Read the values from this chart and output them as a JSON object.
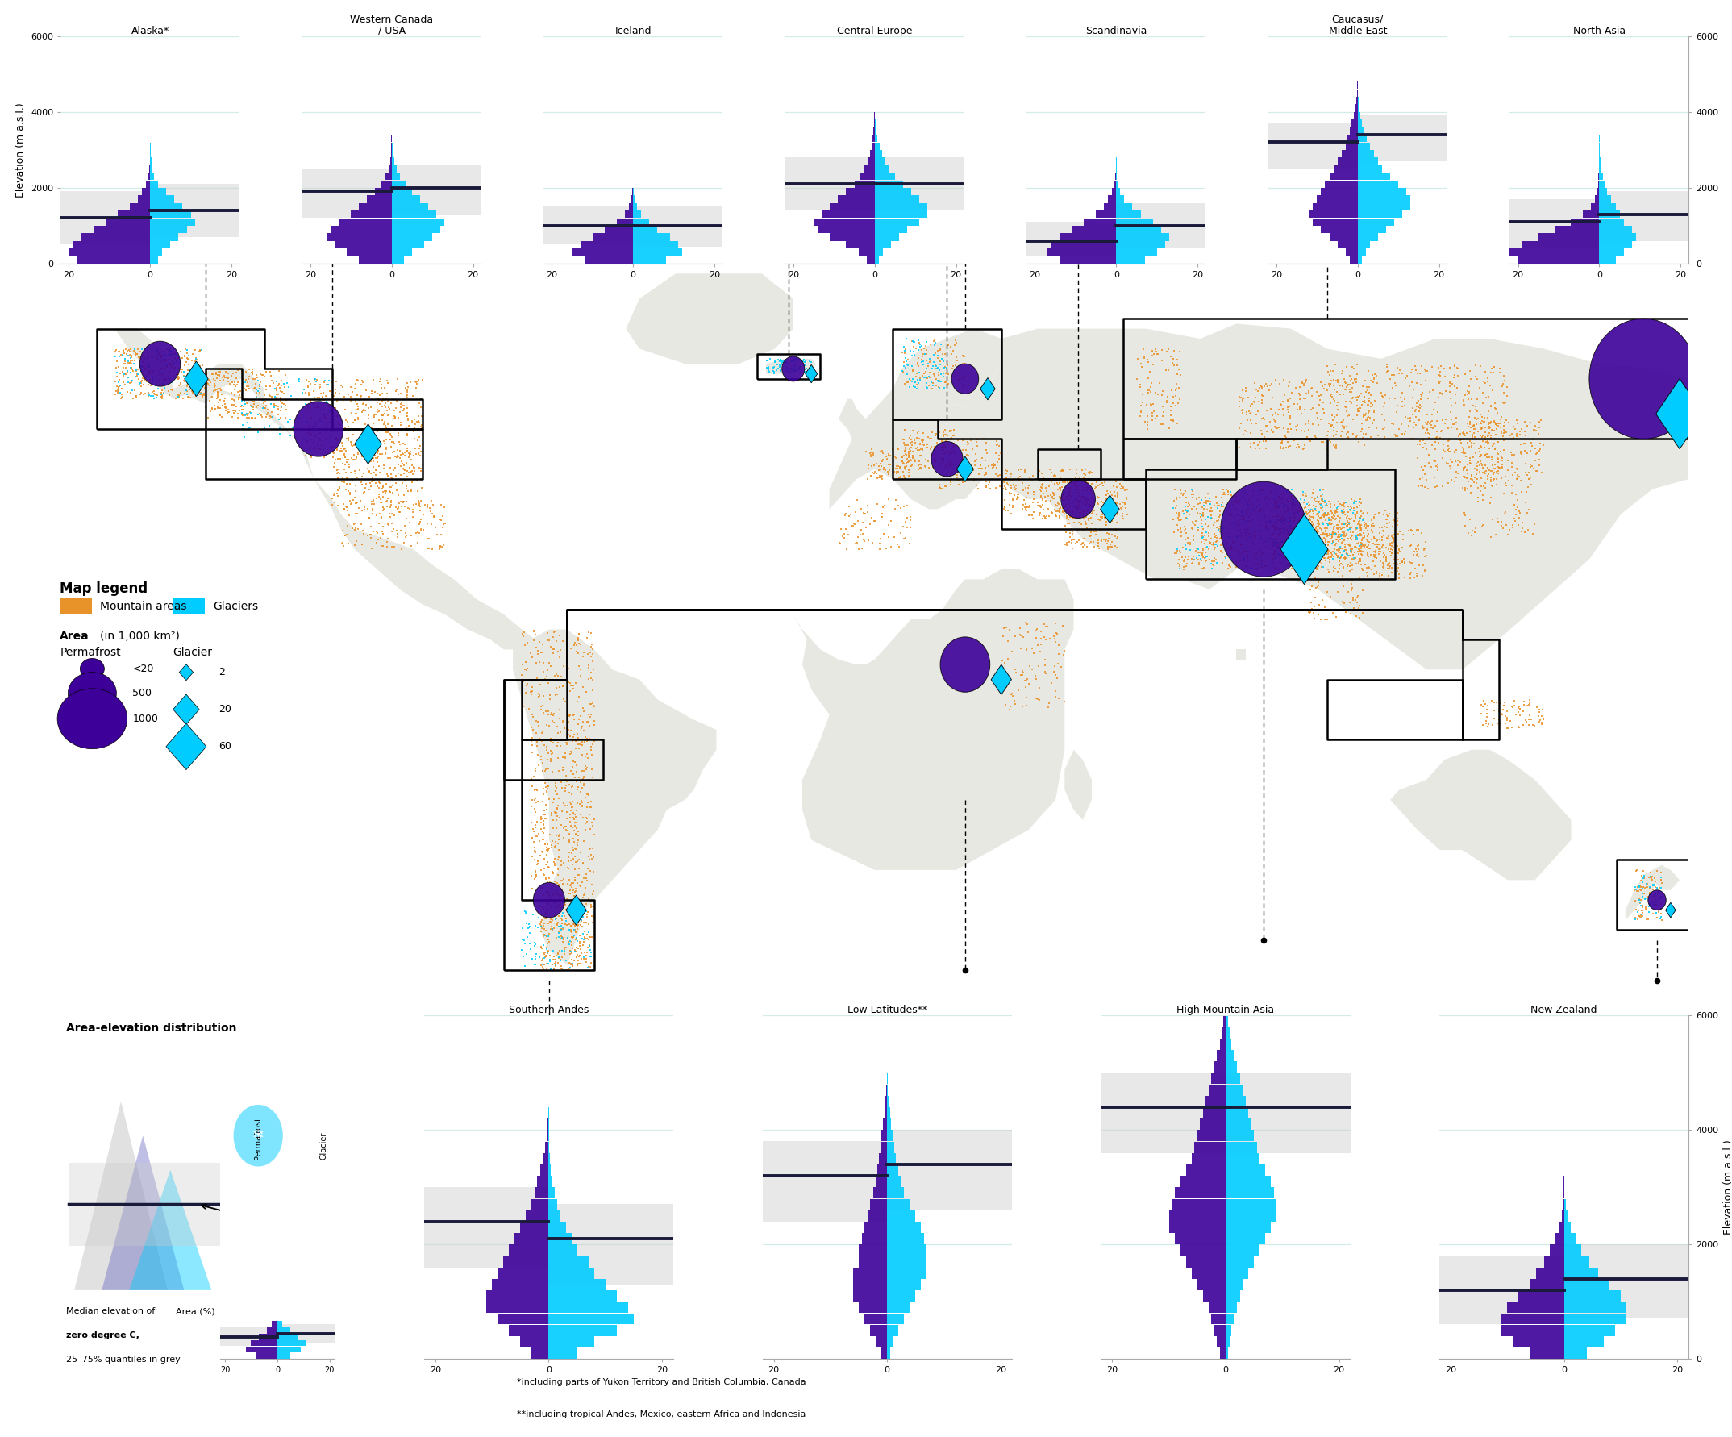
{
  "background_color": "#aee8e0",
  "land_color": "#e8e8e2",
  "permafrost_color": "#3d0099",
  "glacier_color": "#00ccff",
  "mountain_color": "#E8922A",
  "glacier_map_color": "#00ccff",
  "median_line_color": "#1a1a3a",
  "quantile_color": "#cccccc",
  "grid_color": "#d4ece8",
  "footnote1": "*including parts of Yukon Territory and British Columbia, Canada",
  "footnote2": "**including tropical Andes, Mexico, eastern Africa and Indonesia",
  "top_regions": [
    "Alaska*",
    "Western Canada\n/ USA",
    "Iceland",
    "Central Europe",
    "Scandinavia",
    "Caucasus/\nMiddle East",
    "North Asia"
  ],
  "bottom_regions": [
    "Southern Andes",
    "Low Latitudes**",
    "High Mountain Asia",
    "New Zealand"
  ]
}
